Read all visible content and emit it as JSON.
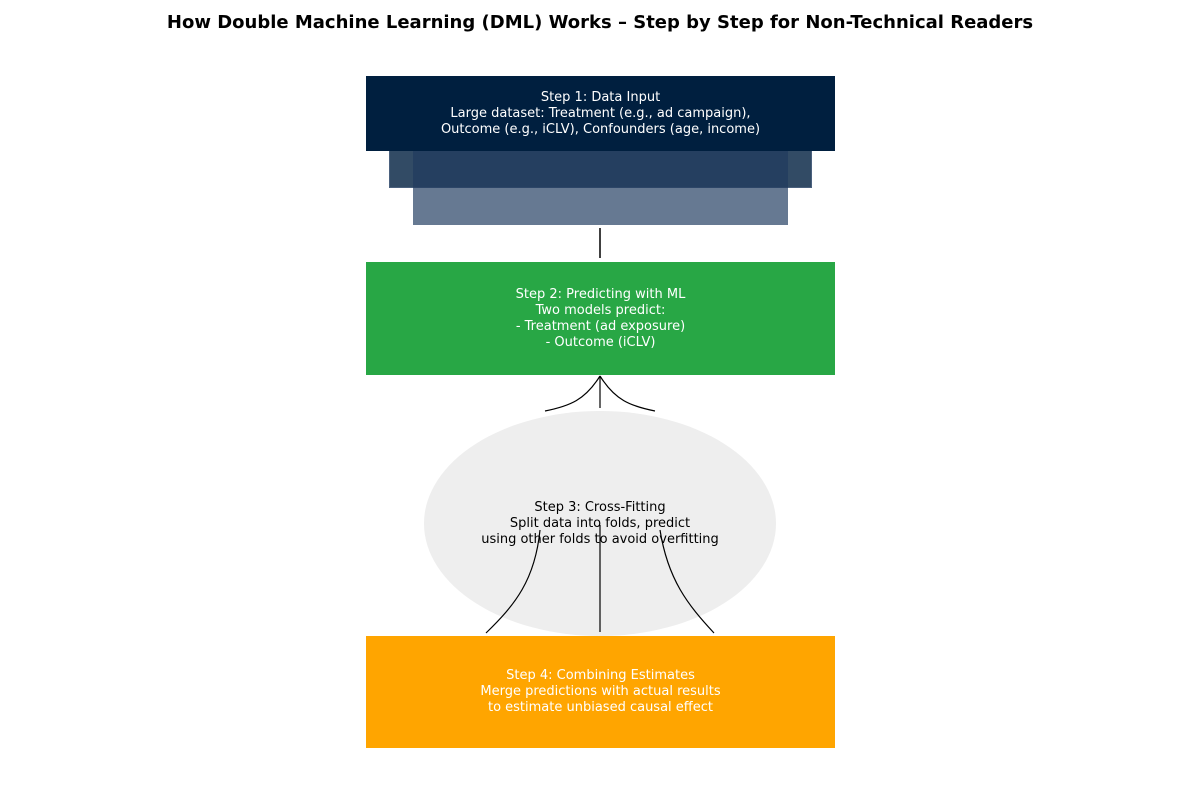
{
  "title": "How Double Machine Learning (DML) Works – Step by Step for Non-Technical Readers",
  "steps": [
    {
      "text": "Step 1: Data Input\nLarge dataset: Treatment (e.g., ad campaign),\nOutcome (e.g., iCLV), Confounders (age, income)",
      "color": "#001f3f"
    },
    {
      "text": "Step 2: Predicting with ML\nTwo models predict:\n- Treatment (ad exposure)\n- Outcome (iCLV)",
      "color": "#28a745"
    },
    {
      "text": "Step 3: Cross-Fitting\nSplit data into folds, predict\nusing other folds to avoid overfitting",
      "color": "#eeeeee"
    },
    {
      "text": "Step 4: Combining Estimates\nMerge predictions with actual results\nto estimate unbiased causal effect",
      "color": "#ffa500"
    }
  ]
}
